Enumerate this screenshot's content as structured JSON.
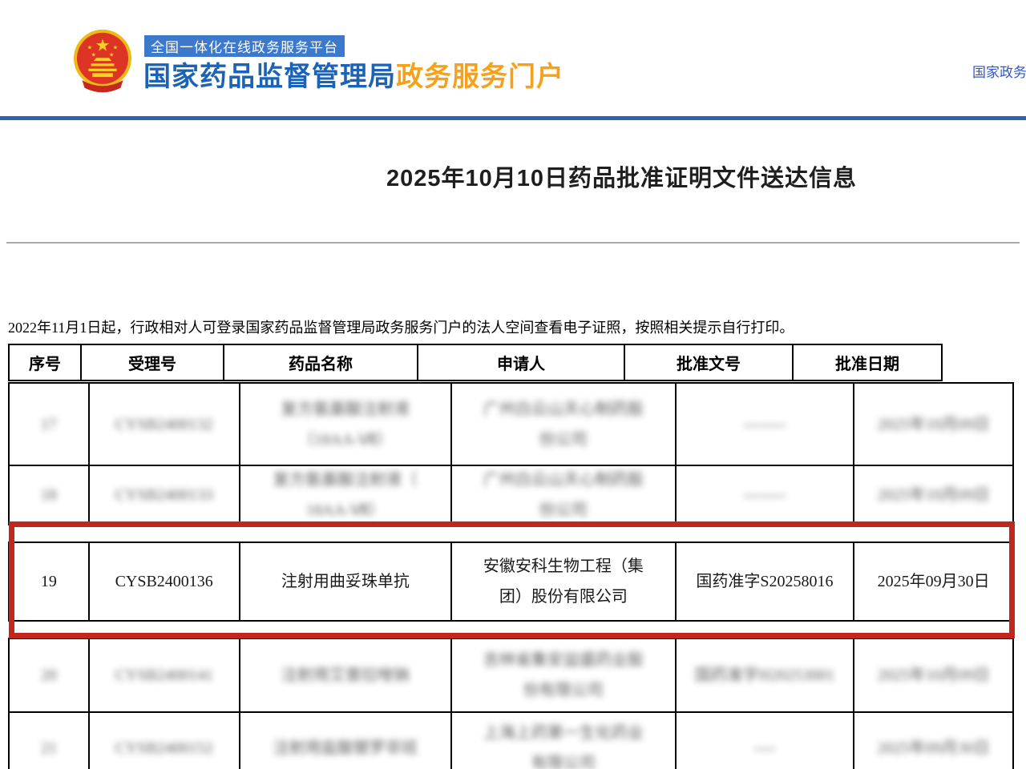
{
  "header": {
    "emblem_icon": "china-national-emblem",
    "platform_badge": "全国一体化在线政务服务平台",
    "site_title_blue": "国家药品监督管理局",
    "site_title_orange": "政务服务门户",
    "top_right_link": "国家政务服务平台",
    "colors": {
      "badge_bg": "#3c79cb",
      "title_blue": "#1d63b5",
      "title_orange": "#f6a11c",
      "top_bar_blue": "#2d62b0",
      "link_blue": "#3156c9"
    }
  },
  "page": {
    "title": "2025年10月10日药品批准证明文件送达信息",
    "notice": "2022年11月1日起，行政相对人可登录国家药品监督管理局政务服务门户的法人空间查看电子证照，按照相关提示自行打印。"
  },
  "table": {
    "headers": [
      "序号",
      "受理号",
      "药品名称",
      "申请人",
      "批准文号",
      "批准日期"
    ],
    "rows": [
      {
        "blurred": true,
        "highlighted": false,
        "cells": [
          [
            "17"
          ],
          [
            "CYSB2400132"
          ],
          [
            "复方氨基酸注射液",
            "（18AA-Ⅶ）"
          ],
          [
            "广州白云山天心制药股",
            "份公司"
          ],
          [
            "--------"
          ],
          [
            "2025年10月09日"
          ]
        ]
      },
      {
        "blurred": true,
        "highlighted": false,
        "cells": [
          [
            "18"
          ],
          [
            "CYSB2400133"
          ],
          [
            "复方氨基酸注射液（",
            "18AA-Ⅶ）"
          ],
          [
            "广州白云山天心制药股",
            "份公司"
          ],
          [
            "--------"
          ],
          [
            "2025年10月09日"
          ]
        ]
      },
      {
        "blurred": false,
        "highlighted": true,
        "cells": [
          [
            "19"
          ],
          [
            "CYSB2400136"
          ],
          [
            "注射用曲妥珠单抗"
          ],
          [
            "安徽安科生物工程（集",
            "团）股份有限公司"
          ],
          [
            "国药准字S20258016"
          ],
          [
            "2025年09月30日"
          ]
        ]
      },
      {
        "blurred": true,
        "highlighted": false,
        "cells": [
          [
            "20"
          ],
          [
            "CYSB2400141"
          ],
          [
            "注射用艾普拉唑钠"
          ],
          [
            "吉林省集安益盛药业股",
            "份有限公司"
          ],
          [
            "国药准字H20253001"
          ],
          [
            "2025年10月09日"
          ]
        ]
      },
      {
        "blurred": true,
        "highlighted": false,
        "cells": [
          [
            "21"
          ],
          [
            "CYSB2400152"
          ],
          [
            "注射用盐酸替罗非班"
          ],
          [
            "上海上药第一生化药业",
            "有限公司"
          ],
          [
            "----"
          ],
          [
            "2025年09月30日"
          ]
        ]
      }
    ],
    "highlight_color": "#c1271c"
  }
}
